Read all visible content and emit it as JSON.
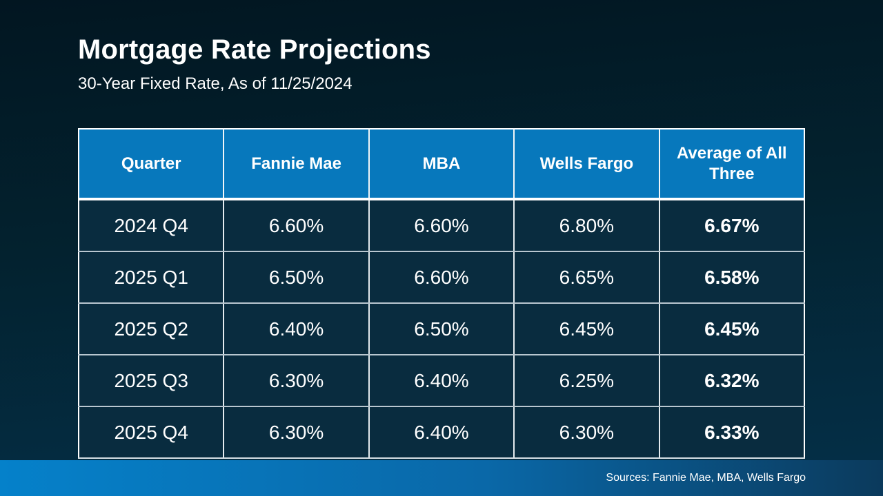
{
  "slide": {
    "title": "Mortgage Rate Projections",
    "subtitle": "30-Year Fixed Rate, As of 11/25/2024"
  },
  "chart_data": {
    "type": "table",
    "title": "Mortgage Rate Projections",
    "subtitle": "30-Year Fixed Rate, As of 11/25/2024",
    "columns": [
      "Quarter",
      "Fannie Mae",
      "MBA",
      "Wells Fargo",
      "Average of All Three"
    ],
    "rows": [
      [
        "2024 Q4",
        "6.60%",
        "6.60%",
        "6.80%",
        "6.67%"
      ],
      [
        "2025 Q1",
        "6.50%",
        "6.60%",
        "6.65%",
        "6.58%"
      ],
      [
        "2025 Q2",
        "6.40%",
        "6.50%",
        "6.45%",
        "6.45%"
      ],
      [
        "2025 Q3",
        "6.30%",
        "6.40%",
        "6.25%",
        "6.32%"
      ],
      [
        "2025 Q4",
        "6.30%",
        "6.40%",
        "6.30%",
        "6.33%"
      ]
    ],
    "notes": "Last column values are bold (averages of the three projections)"
  },
  "footer": {
    "source_note": "Sources: Fannie Mae, MBA, Wells Fargo"
  },
  "colors": {
    "header-blue": "#0778BC",
    "table-cell-bg": "#092C3F",
    "background-top": "#021621",
    "background-bottom": "#043049",
    "footer-left": "#0581CA",
    "footer-right": "#0B3A5C",
    "text": "#FFFFFF"
  }
}
